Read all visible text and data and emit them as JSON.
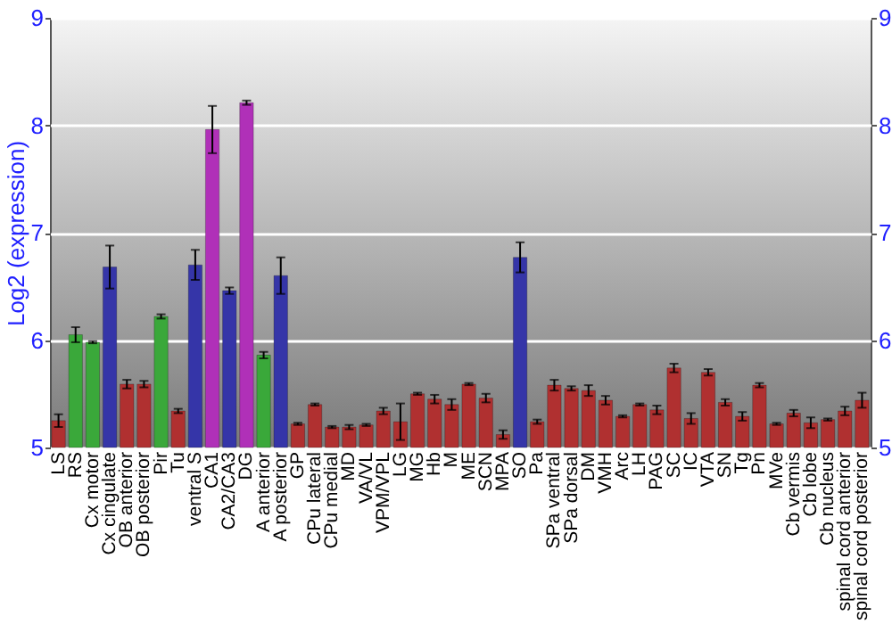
{
  "chart_data": {
    "type": "bar",
    "ylabel": "Log2 (expression)",
    "categories": [
      "LS",
      "RS",
      "Cx motor",
      "Cx cingulate",
      "OB anterior",
      "OB posterior",
      "Pir",
      "Tu",
      "ventral S",
      "CA1",
      "CA2/CA3",
      "DG",
      "A anterior",
      "A posterior",
      "GP",
      "CPu lateral",
      "CPu medial",
      "MD",
      "VA/VL",
      "VPM/VPL",
      "LG",
      "MG",
      "Hb",
      "M",
      "ME",
      "SCN",
      "MPA",
      "SO",
      "Pa",
      "SPa ventral",
      "SPa dorsal",
      "DM",
      "VMH",
      "Arc",
      "LH",
      "PAG",
      "SC",
      "IC",
      "VTA",
      "SN",
      "Tg",
      "Pn",
      "MVe",
      "Cb vermis",
      "Cb lobe",
      "Cb nucleus",
      "spinal cord anterior",
      "spinal cord posterior"
    ],
    "values": [
      5.25,
      6.05,
      5.98,
      6.68,
      5.59,
      5.59,
      6.22,
      5.34,
      6.7,
      7.96,
      6.46,
      8.21,
      5.86,
      6.6,
      5.22,
      5.4,
      5.19,
      5.19,
      5.21,
      5.34,
      5.24,
      5.5,
      5.45,
      5.4,
      5.59,
      5.46,
      5.12,
      6.77,
      5.24,
      5.58,
      5.55,
      5.53,
      5.44,
      5.29,
      5.4,
      5.35,
      5.74,
      5.27,
      5.7,
      5.42,
      5.29,
      5.58,
      5.22,
      5.32,
      5.23,
      5.26,
      5.34,
      5.44
    ],
    "errors": [
      0.06,
      0.07,
      0.01,
      0.2,
      0.04,
      0.03,
      0.02,
      0.02,
      0.14,
      0.22,
      0.03,
      0.02,
      0.03,
      0.17,
      0.01,
      0.01,
      0.01,
      0.02,
      0.01,
      0.03,
      0.17,
      0.01,
      0.04,
      0.05,
      0.01,
      0.04,
      0.04,
      0.14,
      0.02,
      0.05,
      0.02,
      0.05,
      0.04,
      0.01,
      0.01,
      0.04,
      0.04,
      0.05,
      0.03,
      0.03,
      0.04,
      0.02,
      0.01,
      0.03,
      0.05,
      0.01,
      0.04,
      0.07
    ],
    "colors": [
      "#b03030",
      "#3aa83a",
      "#3aa83a",
      "#3535a8",
      "#b03030",
      "#b03030",
      "#3aa83a",
      "#b03030",
      "#3535a8",
      "#b030b8",
      "#3535a8",
      "#b030b8",
      "#3aa83a",
      "#3535a8",
      "#b03030",
      "#b03030",
      "#b03030",
      "#b03030",
      "#b03030",
      "#b03030",
      "#b03030",
      "#b03030",
      "#b03030",
      "#b03030",
      "#b03030",
      "#b03030",
      "#b03030",
      "#3535a8",
      "#b03030",
      "#b03030",
      "#b03030",
      "#b03030",
      "#b03030",
      "#b03030",
      "#b03030",
      "#b03030",
      "#b03030",
      "#b03030",
      "#b03030",
      "#b03030",
      "#b03030",
      "#b03030",
      "#b03030",
      "#b03030",
      "#b03030",
      "#b03030",
      "#b03030",
      "#b03030"
    ],
    "ylim": [
      5,
      9
    ],
    "yticks": [
      5,
      6,
      7,
      8,
      9
    ],
    "y2lim": [
      5,
      9
    ],
    "y2ticks": [
      5,
      6,
      7,
      8,
      9
    ],
    "grid": "y"
  }
}
